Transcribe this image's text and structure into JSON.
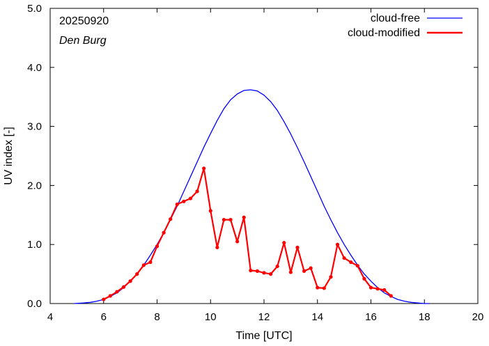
{
  "chart_data": {
    "type": "line",
    "date_label": "20250920",
    "location_label": "Den Burg",
    "xlabel": "Time  [UTC]",
    "ylabel": "UV index  [-]",
    "xlim": [
      4,
      20
    ],
    "ylim": [
      0,
      5
    ],
    "xticks": [
      "4",
      "6",
      "8",
      "10",
      "12",
      "14",
      "16",
      "18",
      "20"
    ],
    "yticks": [
      "0.0",
      "1.0",
      "2.0",
      "3.0",
      "4.0",
      "5.0"
    ],
    "grid": false,
    "legend_position": "top-right",
    "series": [
      {
        "name": "cloud-free",
        "color": "#0000ff",
        "markers": false,
        "x": [
          4.9,
          5.25,
          5.5,
          5.75,
          6.0,
          6.25,
          6.5,
          6.75,
          7.0,
          7.25,
          7.5,
          7.75,
          8.0,
          8.25,
          8.5,
          8.75,
          9.0,
          9.25,
          9.5,
          9.75,
          10.0,
          10.25,
          10.5,
          10.75,
          11.0,
          11.25,
          11.5,
          11.75,
          12.0,
          12.25,
          12.5,
          12.75,
          13.0,
          13.25,
          13.5,
          13.75,
          14.0,
          14.25,
          14.5,
          14.75,
          15.0,
          15.25,
          15.5,
          15.75,
          16.0,
          16.25,
          16.5,
          16.75,
          17.0,
          17.25,
          17.5,
          17.75,
          18.0,
          18.2
        ],
        "y": [
          0.0,
          0.01,
          0.02,
          0.04,
          0.07,
          0.12,
          0.18,
          0.27,
          0.38,
          0.5,
          0.65,
          0.82,
          1.0,
          1.2,
          1.42,
          1.65,
          1.9,
          2.15,
          2.4,
          2.65,
          2.88,
          3.1,
          3.3,
          3.45,
          3.55,
          3.61,
          3.62,
          3.6,
          3.53,
          3.42,
          3.27,
          3.08,
          2.87,
          2.64,
          2.4,
          2.15,
          1.9,
          1.65,
          1.42,
          1.2,
          1.0,
          0.82,
          0.65,
          0.5,
          0.38,
          0.27,
          0.18,
          0.12,
          0.07,
          0.04,
          0.02,
          0.01,
          0.0,
          0.0
        ]
      },
      {
        "name": "cloud-modified",
        "color": "#ff0000",
        "markers": true,
        "x": [
          6.0,
          6.25,
          6.5,
          6.75,
          7.0,
          7.25,
          7.5,
          7.75,
          8.0,
          8.25,
          8.5,
          8.75,
          9.0,
          9.25,
          9.5,
          9.75,
          10.0,
          10.25,
          10.5,
          10.75,
          11.0,
          11.25,
          11.5,
          11.75,
          12.0,
          12.25,
          12.5,
          12.75,
          13.0,
          13.25,
          13.5,
          13.75,
          14.0,
          14.25,
          14.5,
          14.75,
          15.0,
          15.25,
          15.5,
          15.75,
          16.0,
          16.25,
          16.5,
          16.75
        ],
        "y": [
          0.07,
          0.13,
          0.2,
          0.28,
          0.38,
          0.5,
          0.65,
          0.7,
          0.97,
          1.2,
          1.43,
          1.68,
          1.73,
          1.78,
          1.9,
          2.29,
          1.57,
          0.95,
          1.42,
          1.42,
          1.05,
          1.46,
          0.56,
          0.55,
          0.52,
          0.5,
          0.63,
          1.03,
          0.53,
          0.95,
          0.55,
          0.6,
          0.27,
          0.26,
          0.45,
          1.0,
          0.77,
          0.7,
          0.64,
          0.42,
          0.27,
          0.25,
          0.23,
          0.13
        ]
      }
    ]
  }
}
